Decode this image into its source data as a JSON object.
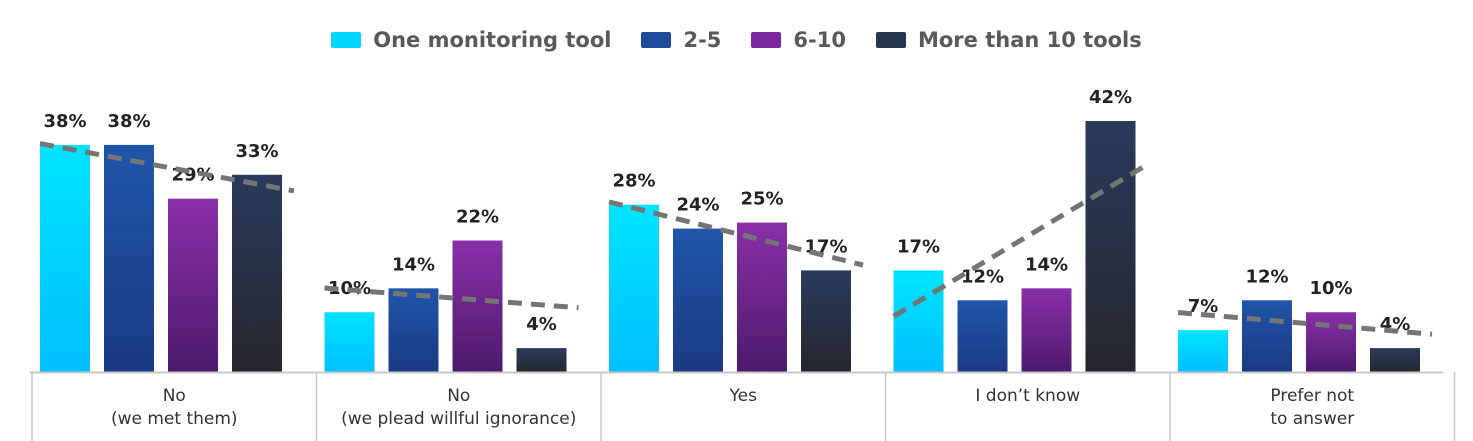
{
  "chart_data": {
    "type": "bar",
    "categories": [
      [
        "No",
        "(we met them)"
      ],
      [
        "No",
        "(we plead willful ignorance)"
      ],
      [
        "Yes"
      ],
      [
        "I don’t know"
      ],
      [
        "Prefer not",
        "to answer"
      ]
    ],
    "series": [
      {
        "name": "One monitoring tool",
        "values": [
          38,
          10,
          28,
          17,
          7
        ],
        "labels": [
          "38%",
          "10%",
          "28%",
          "17%",
          "7%"
        ]
      },
      {
        "name": "2-5",
        "values": [
          38,
          14,
          24,
          12,
          12
        ],
        "labels": [
          "38%",
          "14%",
          "24%",
          "12%",
          "12%"
        ]
      },
      {
        "name": "6-10",
        "values": [
          29,
          22,
          25,
          14,
          10
        ],
        "labels": [
          "29%",
          "22%",
          "25%",
          "14%",
          "10%"
        ]
      },
      {
        "name": "More than 10 tools",
        "values": [
          33,
          4,
          17,
          42,
          4
        ],
        "labels": [
          "33%",
          "4%",
          "17%",
          "42%",
          "4%"
        ]
      }
    ],
    "ylim": [
      0,
      42
    ],
    "trendlines": "dashed gray linear trend per category",
    "legend_position": "top-center",
    "grid": false
  },
  "colors": {
    "series": [
      "#00d7ff",
      "#1e4a9a",
      "#7a2a9c",
      "#263450"
    ],
    "trend": "#757575",
    "axis": "#c8c8c8",
    "text": "#222222",
    "legend_text": "#58595b"
  }
}
